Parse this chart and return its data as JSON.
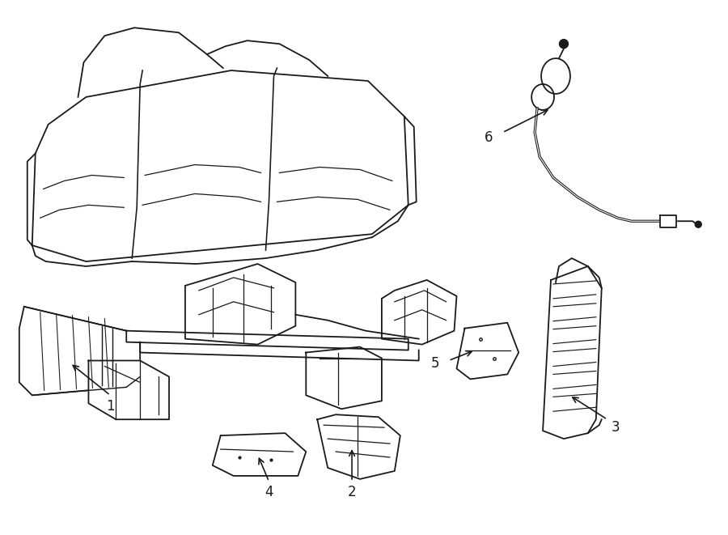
{
  "fig_width": 9.0,
  "fig_height": 6.61,
  "dpi": 100,
  "background_color": "#ffffff",
  "line_color": "#1a1a1a",
  "line_width": 1.3,
  "label_fontsize": 12,
  "xlim": [
    0,
    9.0
  ],
  "ylim": [
    0,
    6.61
  ]
}
